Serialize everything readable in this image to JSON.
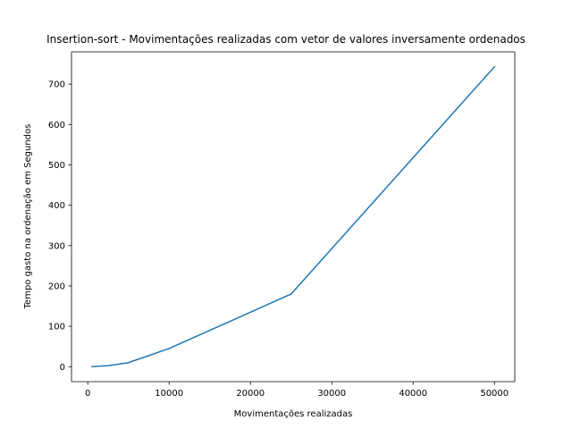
{
  "chart_data": {
    "type": "line",
    "title": "Insertion-sort - Movimentações realizadas com vetor de valores inversamente ordenados",
    "xlabel": "Movimentações realizadas",
    "ylabel": "Tempo gasto na ordenação  em Segundos",
    "xlim": [
      -2000,
      52500
    ],
    "ylim": [
      -37,
      780
    ],
    "xticks": [
      0,
      10000,
      20000,
      30000,
      40000,
      50000
    ],
    "xtick_labels": [
      "0",
      "10000",
      "20000",
      "30000",
      "40000",
      "50000"
    ],
    "yticks": [
      0,
      100,
      200,
      300,
      400,
      500,
      600,
      700
    ],
    "ytick_labels": [
      "0",
      "100",
      "200",
      "300",
      "400",
      "500",
      "600",
      "700"
    ],
    "grid": false,
    "series": [
      {
        "color": "#1f77b4",
        "x": [
          500,
          2500,
          5000,
          10000,
          25000,
          50000
        ],
        "y": [
          0.1,
          2.5,
          10,
          45,
          180,
          743
        ]
      }
    ]
  }
}
